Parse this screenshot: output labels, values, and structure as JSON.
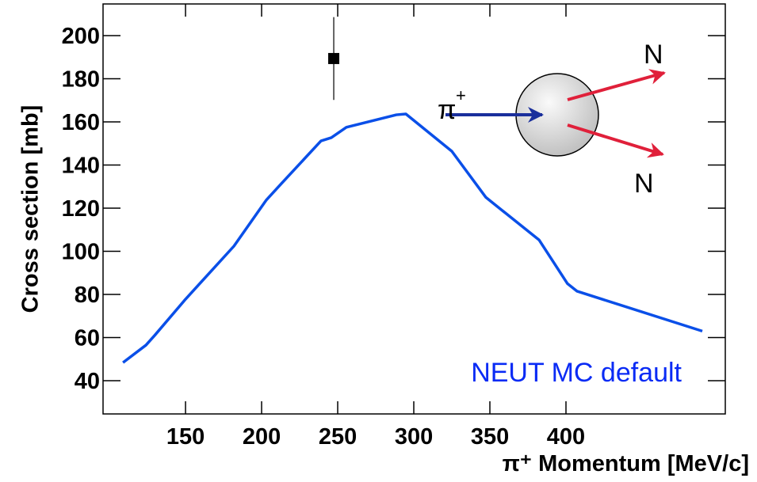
{
  "chart_data": {
    "type": "line",
    "x_label": "π⁺ Momentum [MeV/c]",
    "y_label": "Cross section [mb]",
    "xlim": [
      95.8,
      504.7
    ],
    "ylim": [
      24.6,
      214.7
    ],
    "xticks": [
      150,
      200,
      250,
      300,
      350,
      400
    ],
    "yticks": [
      40,
      60,
      80,
      100,
      120,
      140,
      160,
      180,
      200
    ],
    "annotations": [
      "NEUT MC default",
      "π",
      "+",
      "N",
      "N"
    ],
    "series": [
      {
        "color": "#0a4fe8",
        "x": [
          108.9,
          124,
          129.7,
          150,
          181.8,
          203,
          213,
          239,
          245.8,
          255.7,
          288.5,
          294.8,
          325,
          347.4,
          382.3,
          401,
          407.3,
          489.6
        ],
        "values": [
          48.4,
          56.5,
          61,
          77.8,
          102.4,
          123.7,
          131.4,
          151.2,
          152.7,
          157.5,
          163.3,
          163.7,
          146.4,
          125,
          105.3,
          85,
          81.5,
          63
        ]
      },
      {
        "color": "#000000",
        "marker": "square",
        "x": [
          247.4
        ],
        "values": [
          189.4
        ],
        "errors": [
          19.2
        ]
      }
    ]
  }
}
